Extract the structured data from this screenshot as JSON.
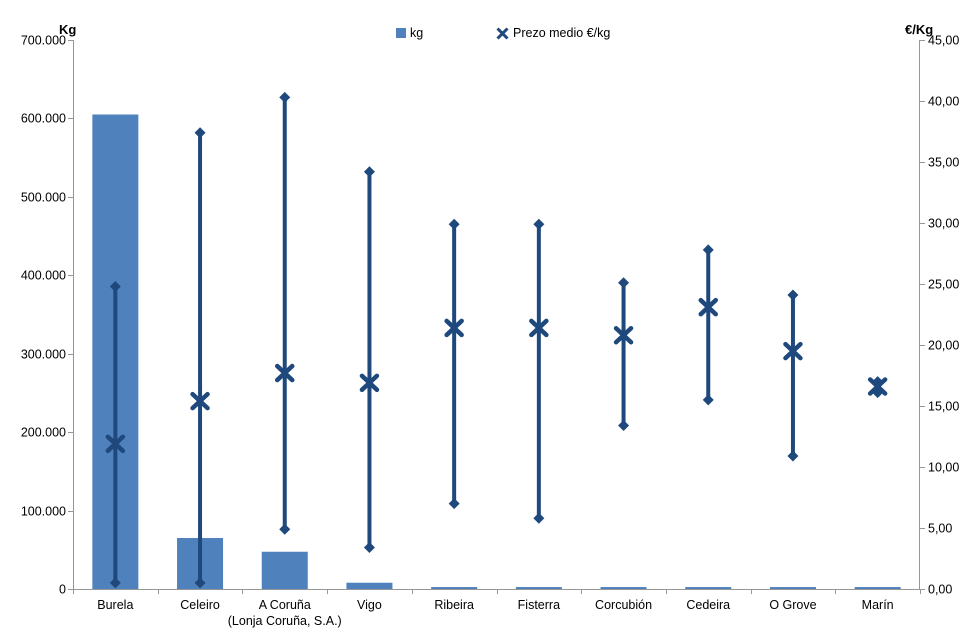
{
  "chart": {
    "left_axis_title": "Kg",
    "right_axis_title": "€/Kg",
    "legend": {
      "kg_label": "kg",
      "price_label": "Prezo medio €/kg"
    }
  },
  "chart_data": {
    "type": "bar",
    "subtype": "bar-with-highlow-range-and-mean-marker",
    "title": "",
    "categories": [
      {
        "label": "Burela",
        "sublabel": ""
      },
      {
        "label": "Celeiro",
        "sublabel": ""
      },
      {
        "label": "A Coruña",
        "sublabel": "(Lonja Coruña, S.A.)"
      },
      {
        "label": "Vigo",
        "sublabel": ""
      },
      {
        "label": "Ribeira",
        "sublabel": ""
      },
      {
        "label": "Fisterra",
        "sublabel": ""
      },
      {
        "label": "Corcubión",
        "sublabel": ""
      },
      {
        "label": "Cedeira",
        "sublabel": ""
      },
      {
        "label": "O Grove",
        "sublabel": ""
      },
      {
        "label": "Marín",
        "sublabel": ""
      }
    ],
    "series": [
      {
        "name": "kg",
        "type": "bar",
        "axis": "left",
        "values": [
          605000,
          65000,
          47500,
          8000,
          2500,
          2500,
          2500,
          2500,
          2500,
          2500
        ]
      },
      {
        "name": "Prezo medio €/kg",
        "type": "highlow-mean",
        "axis": "right",
        "high": [
          24.8,
          37.4,
          40.3,
          34.2,
          29.9,
          29.9,
          25.1,
          27.8,
          24.1,
          17.0
        ],
        "mean": [
          11.9,
          15.4,
          17.7,
          16.9,
          21.4,
          21.4,
          20.8,
          23.1,
          19.5,
          16.6
        ],
        "low": [
          0.5,
          0.5,
          4.9,
          3.4,
          7.0,
          5.8,
          13.4,
          15.5,
          10.9,
          16.1
        ]
      }
    ],
    "left_axis": {
      "label": "Kg",
      "min": 0,
      "max": 700000,
      "step": 100000,
      "tick_labels": [
        "0",
        "100.000",
        "200.000",
        "300.000",
        "400.000",
        "500.000",
        "600.000",
        "700.000"
      ]
    },
    "right_axis": {
      "label": "€/Kg",
      "min": 0,
      "max": 45,
      "step": 5,
      "tick_labels": [
        "0,00",
        "5,00",
        "10,00",
        "15,00",
        "20,00",
        "25,00",
        "30,00",
        "35,00",
        "40,00",
        "45,00"
      ]
    },
    "legend_position": "top-center",
    "grid": false,
    "colors": {
      "bar": "#4F81BD",
      "hilo_line": "#1F497D",
      "axis_line": "#969696",
      "text": "#000000",
      "background": "#FFFFFF"
    }
  }
}
